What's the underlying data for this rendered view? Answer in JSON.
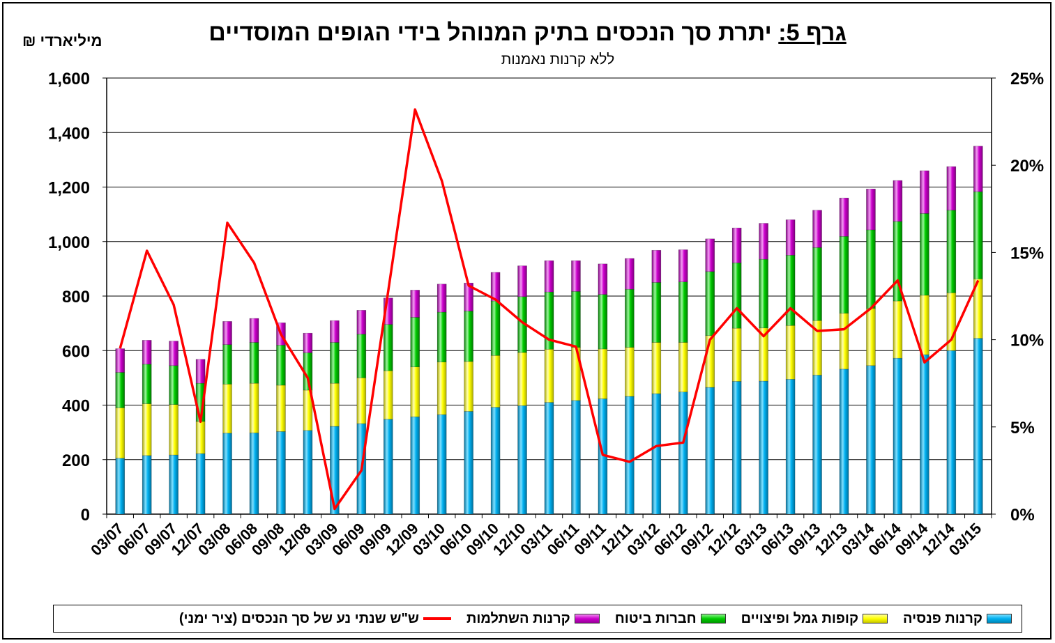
{
  "title_prefix": "גרף 5:",
  "title_main": "יתרת סך הנכסים בתיק המנוהל בידי הגופים המוסדיים",
  "subtitle": "ללא קרנות נאמנות",
  "unit_label": "מיליארדי ₪",
  "chart_data": {
    "type": "bar",
    "stacked": true,
    "categories": [
      "03/07",
      "06/07",
      "09/07",
      "12/07",
      "03/08",
      "06/08",
      "09/08",
      "12/08",
      "03/09",
      "06/09",
      "09/09",
      "12/09",
      "03/10",
      "06/10",
      "09/10",
      "12/10",
      "03/11",
      "06/11",
      "09/11",
      "12/11",
      "03/12",
      "06/12",
      "09/12",
      "12/12",
      "03/13",
      "06/13",
      "09/13",
      "12/13",
      "03/14",
      "06/14",
      "09/14",
      "12/14",
      "03/15"
    ],
    "left_axis": {
      "min": 0,
      "max": 1600,
      "ticks": [
        "0",
        "200",
        "400",
        "600",
        "800",
        "1,000",
        "1,200",
        "1,400",
        "1,600"
      ]
    },
    "right_axis": {
      "min": 0,
      "max": 25,
      "ticks": [
        "0%",
        "5%",
        "10%",
        "15%",
        "20%",
        "25%"
      ]
    },
    "grid": true,
    "legend_position": "bottom",
    "series": [
      {
        "name": "קרנות פנסיה",
        "color": "#00b0f0",
        "values": [
          205,
          215,
          217,
          222,
          297,
          298,
          303,
          307,
          322,
          332,
          348,
          357,
          365,
          377,
          392,
          398,
          410,
          417,
          423,
          432,
          442,
          448,
          465,
          487,
          488,
          495,
          510,
          532,
          545,
          572,
          585,
          600,
          645
        ]
      },
      {
        "name": "קופות גמל ופיצויים",
        "color": "#ffff00",
        "values": [
          185,
          190,
          185,
          118,
          180,
          182,
          170,
          148,
          158,
          168,
          178,
          183,
          193,
          183,
          190,
          195,
          195,
          195,
          183,
          180,
          188,
          182,
          190,
          195,
          195,
          197,
          200,
          205,
          210,
          210,
          218,
          212,
          218
        ]
      },
      {
        "name": "חברות ביטוח",
        "color": "#00cc00",
        "values": [
          130,
          145,
          143,
          140,
          145,
          150,
          147,
          137,
          150,
          160,
          170,
          182,
          183,
          185,
          200,
          205,
          210,
          205,
          200,
          213,
          220,
          222,
          235,
          240,
          252,
          258,
          268,
          282,
          288,
          292,
          300,
          303,
          320
        ]
      },
      {
        "name": "קרנות השתלמות",
        "color": "#cc00cc",
        "values": [
          87,
          88,
          90,
          88,
          85,
          88,
          82,
          72,
          80,
          88,
          97,
          100,
          103,
          103,
          105,
          113,
          115,
          113,
          112,
          113,
          118,
          118,
          120,
          128,
          132,
          130,
          137,
          141,
          150,
          150,
          157,
          160,
          167
        ]
      }
    ],
    "line_series": {
      "name": "ש\"ש שנתי נע של סך הנכסים (ציר ימני)",
      "color": "#ff0000",
      "axis": "right",
      "values": [
        9.5,
        15.1,
        12.0,
        5.3,
        16.7,
        14.4,
        10.3,
        7.8,
        0.3,
        2.5,
        12.8,
        23.2,
        19.1,
        13.1,
        12.3,
        11.0,
        10.0,
        9.6,
        3.4,
        3.0,
        3.9,
        4.1,
        10.0,
        11.8,
        10.2,
        11.8,
        10.5,
        10.6,
        11.8,
        13.4,
        8.7,
        10.0,
        13.4
      ]
    }
  }
}
